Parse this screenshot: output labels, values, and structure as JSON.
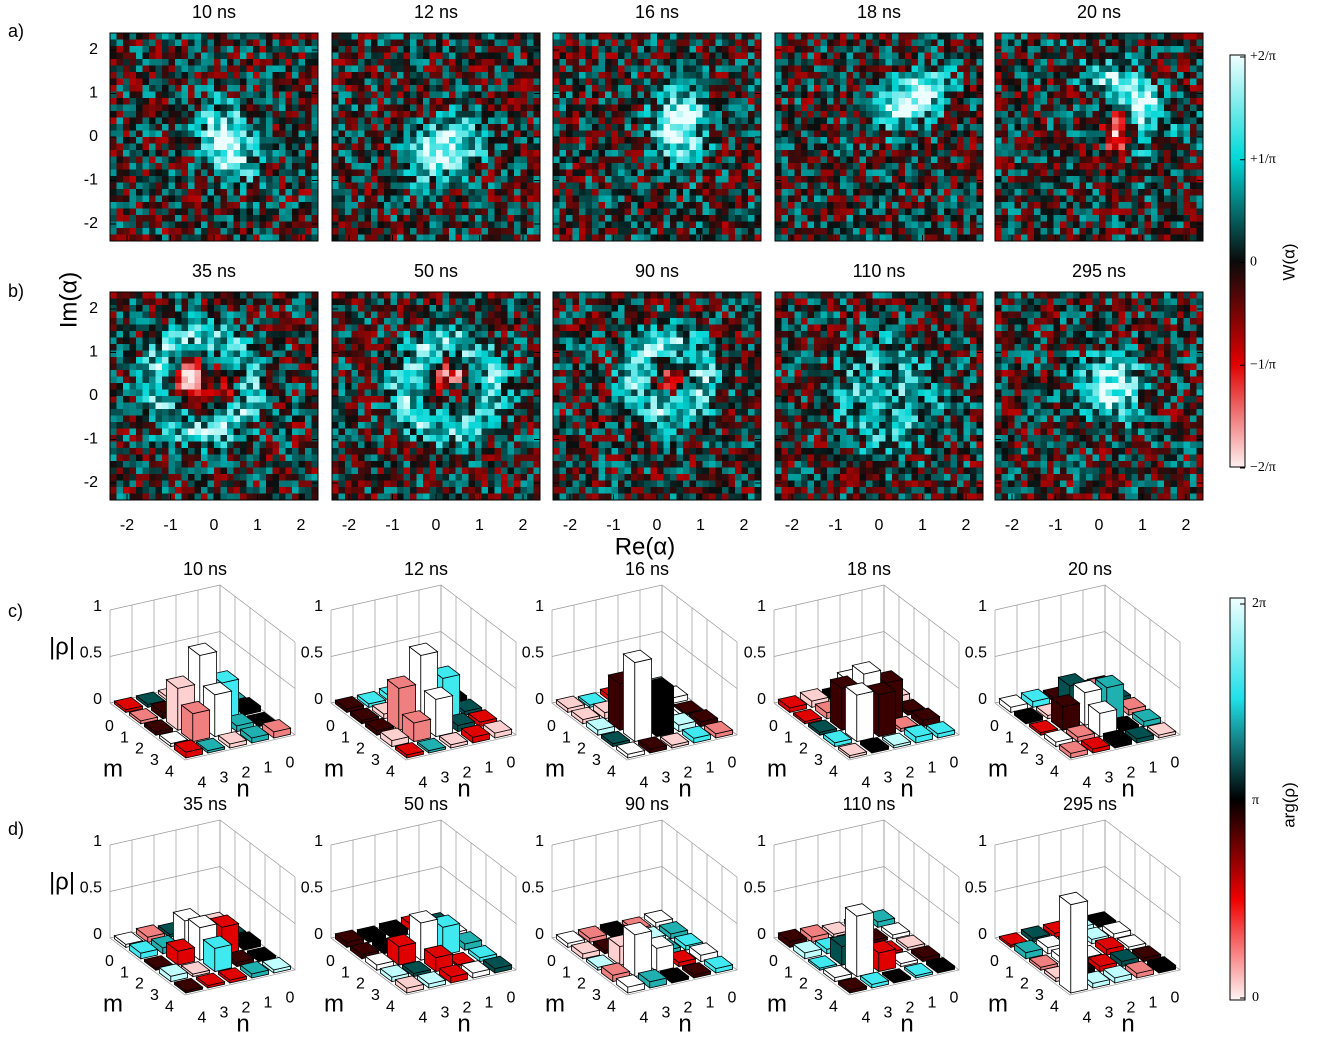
{
  "panel_labels": [
    "a)",
    "b)",
    "c)",
    "d)"
  ],
  "wigner": {
    "x_label": "Re(α)",
    "y_label": "Im(α)",
    "ticks": [
      -2,
      -1,
      0,
      1,
      2
    ],
    "times": [
      [
        "10 ns",
        "12 ns",
        "16 ns",
        "18 ns",
        "20 ns"
      ],
      [
        "35 ns",
        "50 ns",
        "90 ns",
        "110 ns",
        "295 ns"
      ]
    ],
    "colorbar": {
      "label": "W(α)",
      "ticks": [
        "+2/π",
        "+1/π",
        "0",
        "−1/π",
        "−2/π"
      ]
    }
  },
  "density": {
    "z_label": "|ρ|",
    "z_ticks": [
      0,
      0.5,
      1
    ],
    "m_label": "m",
    "n_label": "n",
    "index_ticks": [
      0,
      1,
      2,
      3,
      4
    ],
    "times": [
      [
        "10 ns",
        "12 ns",
        "16 ns",
        "18 ns",
        "20 ns"
      ],
      [
        "35 ns",
        "50 ns",
        "90 ns",
        "110 ns",
        "295 ns"
      ]
    ],
    "colorbar": {
      "label": "arg(ρ)",
      "ticks": [
        "2π",
        "π",
        "0"
      ]
    }
  }
}
